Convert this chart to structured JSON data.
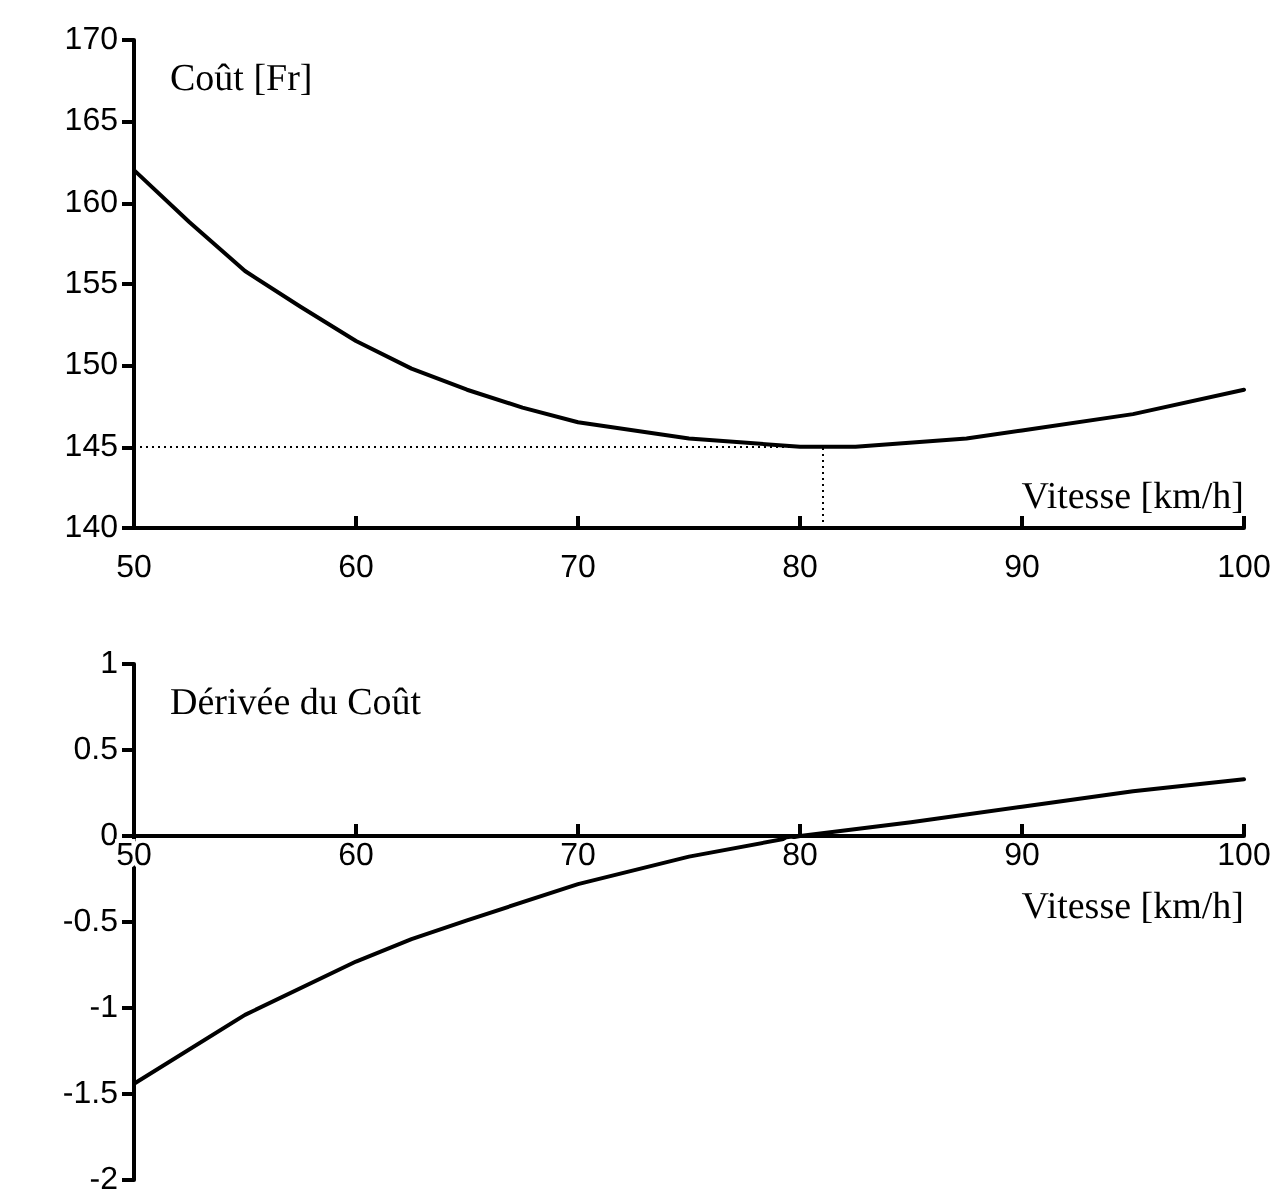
{
  "chart_data": [
    {
      "type": "line",
      "ylabel": "Coût [Fr]",
      "xlabel": "Vitesse [km/h]",
      "series": [
        {
          "color": "#000000",
          "x": [
            50,
            52.5,
            55,
            57.5,
            60,
            62.5,
            65,
            67.5,
            70,
            75,
            80,
            82.5,
            87.5,
            90,
            95,
            100
          ],
          "values": [
            162,
            158.8,
            155.8,
            153.6,
            151.5,
            149.8,
            148.5,
            147.4,
            146.5,
            145.5,
            145,
            145,
            145.5,
            146,
            147,
            148.5
          ]
        }
      ],
      "xlim": [
        50,
        100
      ],
      "xticks": [
        50,
        60,
        70,
        80,
        90,
        100
      ],
      "ylim": [
        140,
        170
      ],
      "yticks": [
        140,
        145,
        150,
        155,
        160,
        165,
        170
      ],
      "ref_lines": [
        {
          "axis": "y",
          "value": 145,
          "color": "#000000",
          "line_style": "dotted"
        },
        {
          "axis": "x",
          "value": 81,
          "color": "#000000",
          "line_style": "dotted"
        }
      ],
      "marker": "none",
      "line_style": "solid"
    },
    {
      "type": "line",
      "ylabel": "Dérivée du Coût",
      "xlabel": "Vitesse [km/h]",
      "series": [
        {
          "color": "#000000",
          "x": [
            50,
            55,
            60,
            62.5,
            65,
            70,
            75,
            80,
            85,
            90,
            95,
            100
          ],
          "values": [
            -1.44,
            -1.04,
            -0.73,
            -0.6,
            -0.49,
            -0.28,
            -0.12,
            0,
            0.08,
            0.17,
            0.26,
            0.33
          ]
        }
      ],
      "xlim": [
        50,
        100
      ],
      "xticks": [
        50,
        60,
        70,
        80,
        90,
        100
      ],
      "ylim": [
        -2,
        1
      ],
      "yticks": [
        -2,
        -1.5,
        -1,
        -0.5,
        0,
        0.5,
        1
      ],
      "marker": "none",
      "line_style": "solid"
    }
  ]
}
